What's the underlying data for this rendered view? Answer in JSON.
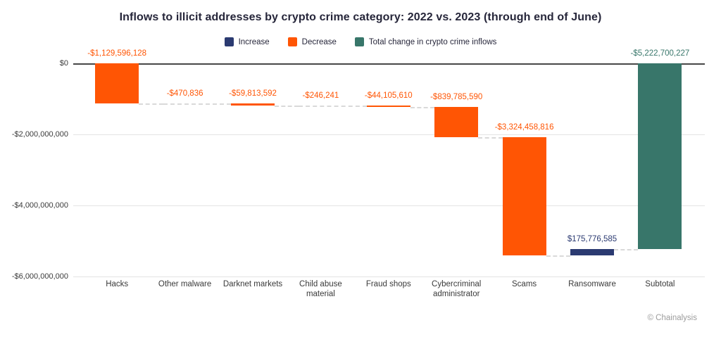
{
  "chart": {
    "title": "Inflows to illicit addresses by crypto crime category: 2022 vs. 2023 (through end of June)",
    "credit": "© Chainalysis"
  },
  "legend": [
    {
      "label": "Increase",
      "type": "increase"
    },
    {
      "label": "Decrease",
      "type": "decrease"
    },
    {
      "label": "Total change in crypto crime inflows",
      "type": "total"
    }
  ],
  "chart_data": {
    "type": "bar",
    "subtype": "waterfall",
    "title": "Inflows to illicit addresses by crypto crime category: 2022 vs. 2023 (through end of June)",
    "xlabel": "",
    "ylabel": "",
    "ylim": [
      -6000000000,
      0
    ],
    "grid": true,
    "legend_position": "top",
    "categories": [
      "Hacks",
      "Other malware",
      "Darknet markets",
      "Child abuse material",
      "Fraud shops",
      "Cybercriminal administrator",
      "Scams",
      "Ransomware",
      "Subtotal"
    ],
    "values": [
      -1129596128,
      -470836,
      -59813592,
      -246241,
      -44105610,
      -839785590,
      -3324458816,
      175776585,
      -5222700227
    ],
    "value_labels": [
      "-$1,129,596,128",
      "-$470,836",
      "-$59,813,592",
      "-$246,241",
      "-$44,105,610",
      "-$839,785,590",
      "-$3,324,458,816",
      "$175,776,585",
      "-$5,222,700,227"
    ],
    "bar_types": [
      "decrease",
      "decrease",
      "decrease",
      "decrease",
      "decrease",
      "decrease",
      "decrease",
      "increase",
      "total"
    ],
    "cumulative": [
      -1129596128,
      -1130066964,
      -1189880556,
      -1190126797,
      -1234232407,
      -2074017997,
      -5398476813,
      -5222700228,
      -5222700227
    ],
    "y_ticks": [
      {
        "label": "$0",
        "value": 0
      },
      {
        "label": "-$2,000,000,000",
        "value": -2000000000
      },
      {
        "label": "-$4,000,000,000",
        "value": -4000000000
      },
      {
        "label": "-$6,000,000,000",
        "value": -6000000000
      }
    ],
    "colors": {
      "increase": "#2b3a71",
      "decrease": "#ff5504",
      "total": "#38766a"
    }
  }
}
